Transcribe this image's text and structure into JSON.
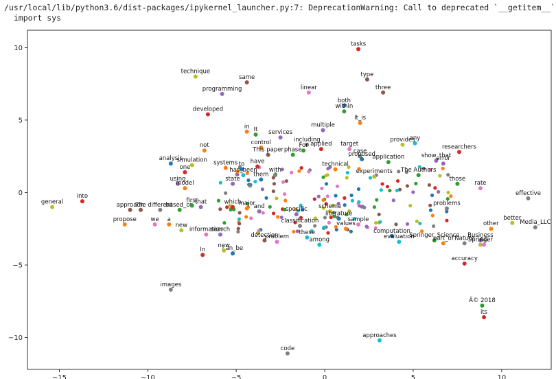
{
  "console": {
    "warning_line1": "/usr/local/lib/python3.6/dist-packages/ipykernel_launcher.py:7: DeprecationWarning: Call to deprecated `__getitem__`",
    "warning_line2": "  import sys"
  },
  "chart_data": {
    "type": "scatter",
    "xlim": [
      -16.8,
      12.8
    ],
    "ylim": [
      -12.2,
      11.2
    ],
    "xticks": [
      -15,
      -10,
      -5,
      0,
      5,
      10
    ],
    "yticks": [
      -10,
      -5,
      0,
      5,
      10
    ],
    "grid": false,
    "points": [
      {
        "label": "tasks",
        "x": 1.9,
        "y": 9.9,
        "color": "#d62728"
      },
      {
        "label": "technique",
        "x": -7.3,
        "y": 8.0,
        "color": "#bcbd22"
      },
      {
        "label": "same",
        "x": -4.4,
        "y": 7.6,
        "color": "#8c564b"
      },
      {
        "label": "type",
        "x": 2.4,
        "y": 7.8,
        "color": "#8c564b"
      },
      {
        "label": "three",
        "x": 3.3,
        "y": 6.9,
        "color": "#8c564b"
      },
      {
        "label": "programming",
        "x": -5.8,
        "y": 6.8,
        "color": "#9467bd"
      },
      {
        "label": "linear",
        "x": -0.9,
        "y": 6.9,
        "color": "#e377c2"
      },
      {
        "label": "both",
        "x": 1.1,
        "y": 6.0,
        "color": "#1f77b4"
      },
      {
        "label": "within",
        "x": 1.1,
        "y": 5.6,
        "color": "#2ca02c"
      },
      {
        "label": "developed",
        "x": -6.6,
        "y": 5.4,
        "color": "#d62728"
      },
      {
        "label": "It_is",
        "x": 2.0,
        "y": 4.8,
        "color": "#ff7f0e"
      },
      {
        "label": "in",
        "x": -4.4,
        "y": 4.2,
        "color": "#ff7f0e"
      },
      {
        "label": "It",
        "x": -3.9,
        "y": 4.0,
        "color": "#2ca02c"
      },
      {
        "label": "services",
        "x": -2.5,
        "y": 3.8,
        "color": "#9467bd"
      },
      {
        "label": "multiple",
        "x": -0.1,
        "y": 4.3,
        "color": "#9467bd"
      },
      {
        "label": "including",
        "x": -1.0,
        "y": 3.3,
        "color": "#7f7f7f"
      },
      {
        "label": "control",
        "x": -3.6,
        "y": 3.1,
        "color": "#ff7f0e"
      },
      {
        "label": "applied",
        "x": -0.2,
        "y": 3.0,
        "color": "#d62728"
      },
      {
        "label": "For",
        "x": -1.2,
        "y": 2.9,
        "color": "#2ca02c"
      },
      {
        "label": "provides",
        "x": 4.4,
        "y": 3.3,
        "color": "#bcbd22"
      },
      {
        "label": "any",
        "x": 5.1,
        "y": 3.4,
        "color": "#17becf"
      },
      {
        "label": "target",
        "x": 1.4,
        "y": 3.0,
        "color": "#e377c2"
      },
      {
        "label": "researchers",
        "x": 7.6,
        "y": 2.8,
        "color": "#d62728"
      },
      {
        "label": "not",
        "x": -6.8,
        "y": 2.9,
        "color": "#ff7f0e"
      },
      {
        "label": "This paper",
        "x": -3.2,
        "y": 2.6,
        "color": "#8c564b"
      },
      {
        "label": "phase",
        "x": -1.8,
        "y": 2.6,
        "color": "#2ca02c"
      },
      {
        "label": "case",
        "x": 2.0,
        "y": 2.5,
        "color": "#7f7f7f"
      },
      {
        "label": "proposed",
        "x": 2.1,
        "y": 2.3,
        "color": "#1f77b4"
      },
      {
        "label": "application",
        "x": 3.6,
        "y": 2.1,
        "color": "#2ca02c"
      },
      {
        "label": "show_that",
        "x": 6.3,
        "y": 2.2,
        "color": "#9467bd"
      },
      {
        "label": "error",
        "x": 6.7,
        "y": 2.0,
        "color": "#9467bd"
      },
      {
        "label": "analysis",
        "x": -8.7,
        "y": 2.0,
        "color": "#1f77b4"
      },
      {
        "label": "simulation",
        "x": -7.5,
        "y": 1.9,
        "color": "#bcbd22"
      },
      {
        "label": "one",
        "x": -7.9,
        "y": 1.4,
        "color": "#d62728"
      },
      {
        "label": "systems",
        "x": -5.6,
        "y": 1.7,
        "color": "#ff7f0e"
      },
      {
        "label": "to",
        "x": -4.7,
        "y": 1.6,
        "color": "#1f77b4"
      },
      {
        "label": "have",
        "x": -3.8,
        "y": 1.8,
        "color": "#d62728"
      },
      {
        "label": "The Authors",
        "x": 5.3,
        "y": 1.2,
        "color": "#2ca02c"
      },
      {
        "label": "experiments",
        "x": 2.8,
        "y": 1.1,
        "color": "#bcbd22"
      },
      {
        "label": "has_been",
        "x": -4.6,
        "y": 1.2,
        "color": "#17becf"
      },
      {
        "label": "with",
        "x": -2.8,
        "y": 1.2,
        "color": "#7f7f7f"
      },
      {
        "label": "technical",
        "x": 0.6,
        "y": 1.6,
        "color": "#ff7f0e"
      },
      {
        "label": "using",
        "x": -8.3,
        "y": 0.6,
        "color": "#9467bd"
      },
      {
        "label": "model",
        "x": -7.9,
        "y": 0.3,
        "color": "#ff7f0e"
      },
      {
        "label": "state",
        "x": -5.2,
        "y": 0.6,
        "color": "#9467bd"
      },
      {
        "label": "them",
        "x": -3.6,
        "y": 0.9,
        "color": "#1f77b4"
      },
      {
        "label": "those",
        "x": 7.5,
        "y": 0.6,
        "color": "#2ca02c"
      },
      {
        "label": "rate",
        "x": 8.8,
        "y": 0.3,
        "color": "#e377c2"
      },
      {
        "label": "effective",
        "x": 11.5,
        "y": -0.4,
        "color": "#7f7f7f"
      },
      {
        "label": "into",
        "x": -13.7,
        "y": -0.6,
        "color": "#d62728"
      },
      {
        "label": "general",
        "x": -15.4,
        "y": -1.0,
        "color": "#bcbd22"
      },
      {
        "label": "approach",
        "x": -11.0,
        "y": -1.2,
        "color": "#8c564b"
      },
      {
        "label": "The",
        "x": -10.4,
        "y": -1.2,
        "color": "#8c564b"
      },
      {
        "label": "different",
        "x": -9.3,
        "y": -1.2,
        "color": "#7f7f7f"
      },
      {
        "label": "based_on",
        "x": -8.2,
        "y": -1.2,
        "color": "#2ca02c"
      },
      {
        "label": "that",
        "x": -7.0,
        "y": -1.0,
        "color": "#9467bd"
      },
      {
        "label": "first",
        "x": -7.5,
        "y": -0.9,
        "color": "#2ca02c"
      },
      {
        "label": "which",
        "x": -5.2,
        "y": -1.0,
        "color": "#d62728"
      },
      {
        "label": "major",
        "x": -4.4,
        "y": -1.1,
        "color": "#ff7f0e"
      },
      {
        "label": "and",
        "x": -3.7,
        "y": -1.3,
        "color": "#9467bd"
      },
      {
        "label": "specific",
        "x": -1.6,
        "y": -1.5,
        "color": "#9467bd"
      },
      {
        "label": "scheme",
        "x": 0.3,
        "y": -1.3,
        "color": "#bcbd22"
      },
      {
        "label": "literature",
        "x": 0.8,
        "y": -1.8,
        "color": "#1f77b4"
      },
      {
        "label": "problems",
        "x": 6.9,
        "y": -1.1,
        "color": "#7f7f7f"
      },
      {
        "label": "sample",
        "x": 1.9,
        "y": -2.2,
        "color": "#e377c2"
      },
      {
        "label": "values",
        "x": 1.2,
        "y": -2.5,
        "color": "#ff7f0e"
      },
      {
        "label": "classification",
        "x": -1.4,
        "y": -2.3,
        "color": "#7f7f7f"
      },
      {
        "label": "these",
        "x": -1.0,
        "y": -3.1,
        "color": "#17becf"
      },
      {
        "label": "detection",
        "x": -3.4,
        "y": -3.3,
        "color": "#8c564b"
      },
      {
        "label": "problem",
        "x": -2.7,
        "y": -3.4,
        "color": "#e377c2"
      },
      {
        "label": "among",
        "x": -0.3,
        "y": -3.6,
        "color": "#17becf"
      },
      {
        "label": "computation",
        "x": 3.8,
        "y": -3.0,
        "color": "#1f77b4"
      },
      {
        "label": "evaluation",
        "x": 4.2,
        "y": -3.4,
        "color": "#17becf"
      },
      {
        "label": "Springer_Science",
        "x": 6.2,
        "y": -3.3,
        "color": "#2ca02c"
      },
      {
        "label": "Business",
        "x": 8.8,
        "y": -3.3,
        "color": "#9467bd"
      },
      {
        "label": "part_of",
        "x": 6.7,
        "y": -3.5,
        "color": "#ff7f0e"
      },
      {
        "label": "Springer",
        "x": 8.8,
        "y": -3.6,
        "color": "#bcbd22"
      },
      {
        "label": "Nature",
        "x": 7.9,
        "y": -3.5,
        "color": "#7f7f7f"
      },
      {
        "label": "AG",
        "x": 9.0,
        "y": -3.6,
        "color": "#e377c2"
      },
      {
        "label": "Media_LLC",
        "x": 11.9,
        "y": -2.4,
        "color": "#7f7f7f"
      },
      {
        "label": "better",
        "x": 10.6,
        "y": -2.1,
        "color": "#bcbd22"
      },
      {
        "label": "other",
        "x": 9.4,
        "y": -2.5,
        "color": "#ff7f0e"
      },
      {
        "label": "propose",
        "x": -11.3,
        "y": -2.2,
        "color": "#ff7f0e"
      },
      {
        "label": "we",
        "x": -9.6,
        "y": -2.2,
        "color": "#e377c2"
      },
      {
        "label": "a",
        "x": -8.8,
        "y": -2.2,
        "color": "#ff7f0e"
      },
      {
        "label": "new",
        "x": -8.1,
        "y": -2.6,
        "color": "#bcbd22"
      },
      {
        "label": "information",
        "x": -6.7,
        "y": -2.9,
        "color": "#e377c2"
      },
      {
        "label": "search",
        "x": -5.9,
        "y": -2.9,
        "color": "#9467bd"
      },
      {
        "label": "In",
        "x": -6.9,
        "y": -4.3,
        "color": "#d62728"
      },
      {
        "label": "can_be",
        "x": -5.2,
        "y": -4.2,
        "color": "#1f77b4"
      },
      {
        "label": "new",
        "x": -5.7,
        "y": -4.0,
        "color": "#bcbd22"
      },
      {
        "label": "accuracy",
        "x": 7.9,
        "y": -4.9,
        "color": "#d62728"
      },
      {
        "label": "images",
        "x": -8.7,
        "y": -6.7,
        "color": "#7f7f7f"
      },
      {
        "label": "Â© 2018",
        "x": 8.9,
        "y": -7.8,
        "color": "#2ca02c"
      },
      {
        "label": "its",
        "x": 9.0,
        "y": -8.6,
        "color": "#d62728"
      },
      {
        "label": "approaches",
        "x": 3.1,
        "y": -10.2,
        "color": "#17becf"
      },
      {
        "label": "code",
        "x": -2.1,
        "y": -11.1,
        "color": "#7f7f7f"
      }
    ]
  }
}
